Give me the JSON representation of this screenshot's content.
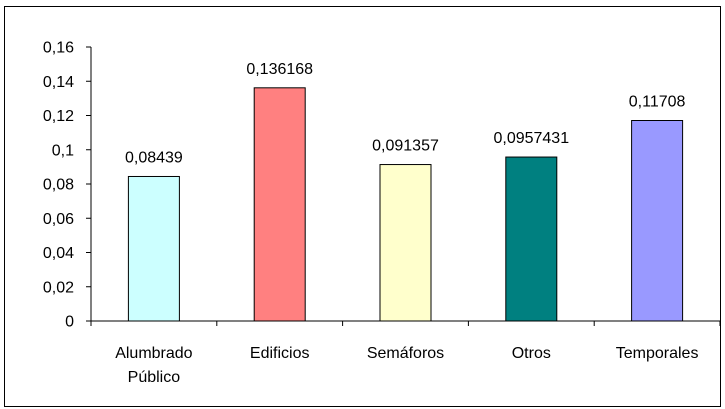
{
  "chart_data": {
    "type": "bar",
    "categories": [
      [
        "Alumbrado",
        "Público"
      ],
      [
        "Edificios"
      ],
      [
        "Semáforos"
      ],
      [
        "Otros"
      ],
      [
        "Temporales"
      ]
    ],
    "values": [
      0.08439,
      0.136168,
      0.091357,
      0.0957431,
      0.11708
    ],
    "data_labels": [
      "0,08439",
      "0,136168",
      "0,091357",
      "0,0957431",
      "0,11708"
    ],
    "bar_colors": [
      "#ccffff",
      "#ff8080",
      "#ffffcc",
      "#008080",
      "#9999ff"
    ],
    "ylim": [
      0,
      0.16
    ],
    "y_ticks": [
      0,
      0.02,
      0.04,
      0.06,
      0.08,
      0.1,
      0.12,
      0.14,
      0.16
    ],
    "y_tick_labels": [
      "0",
      "0,02",
      "0,04",
      "0,06",
      "0,08",
      "0,1",
      "0,12",
      "0,14",
      "0,16"
    ],
    "title": "",
    "xlabel": "",
    "ylabel": "",
    "grid": false,
    "legend": "none"
  }
}
